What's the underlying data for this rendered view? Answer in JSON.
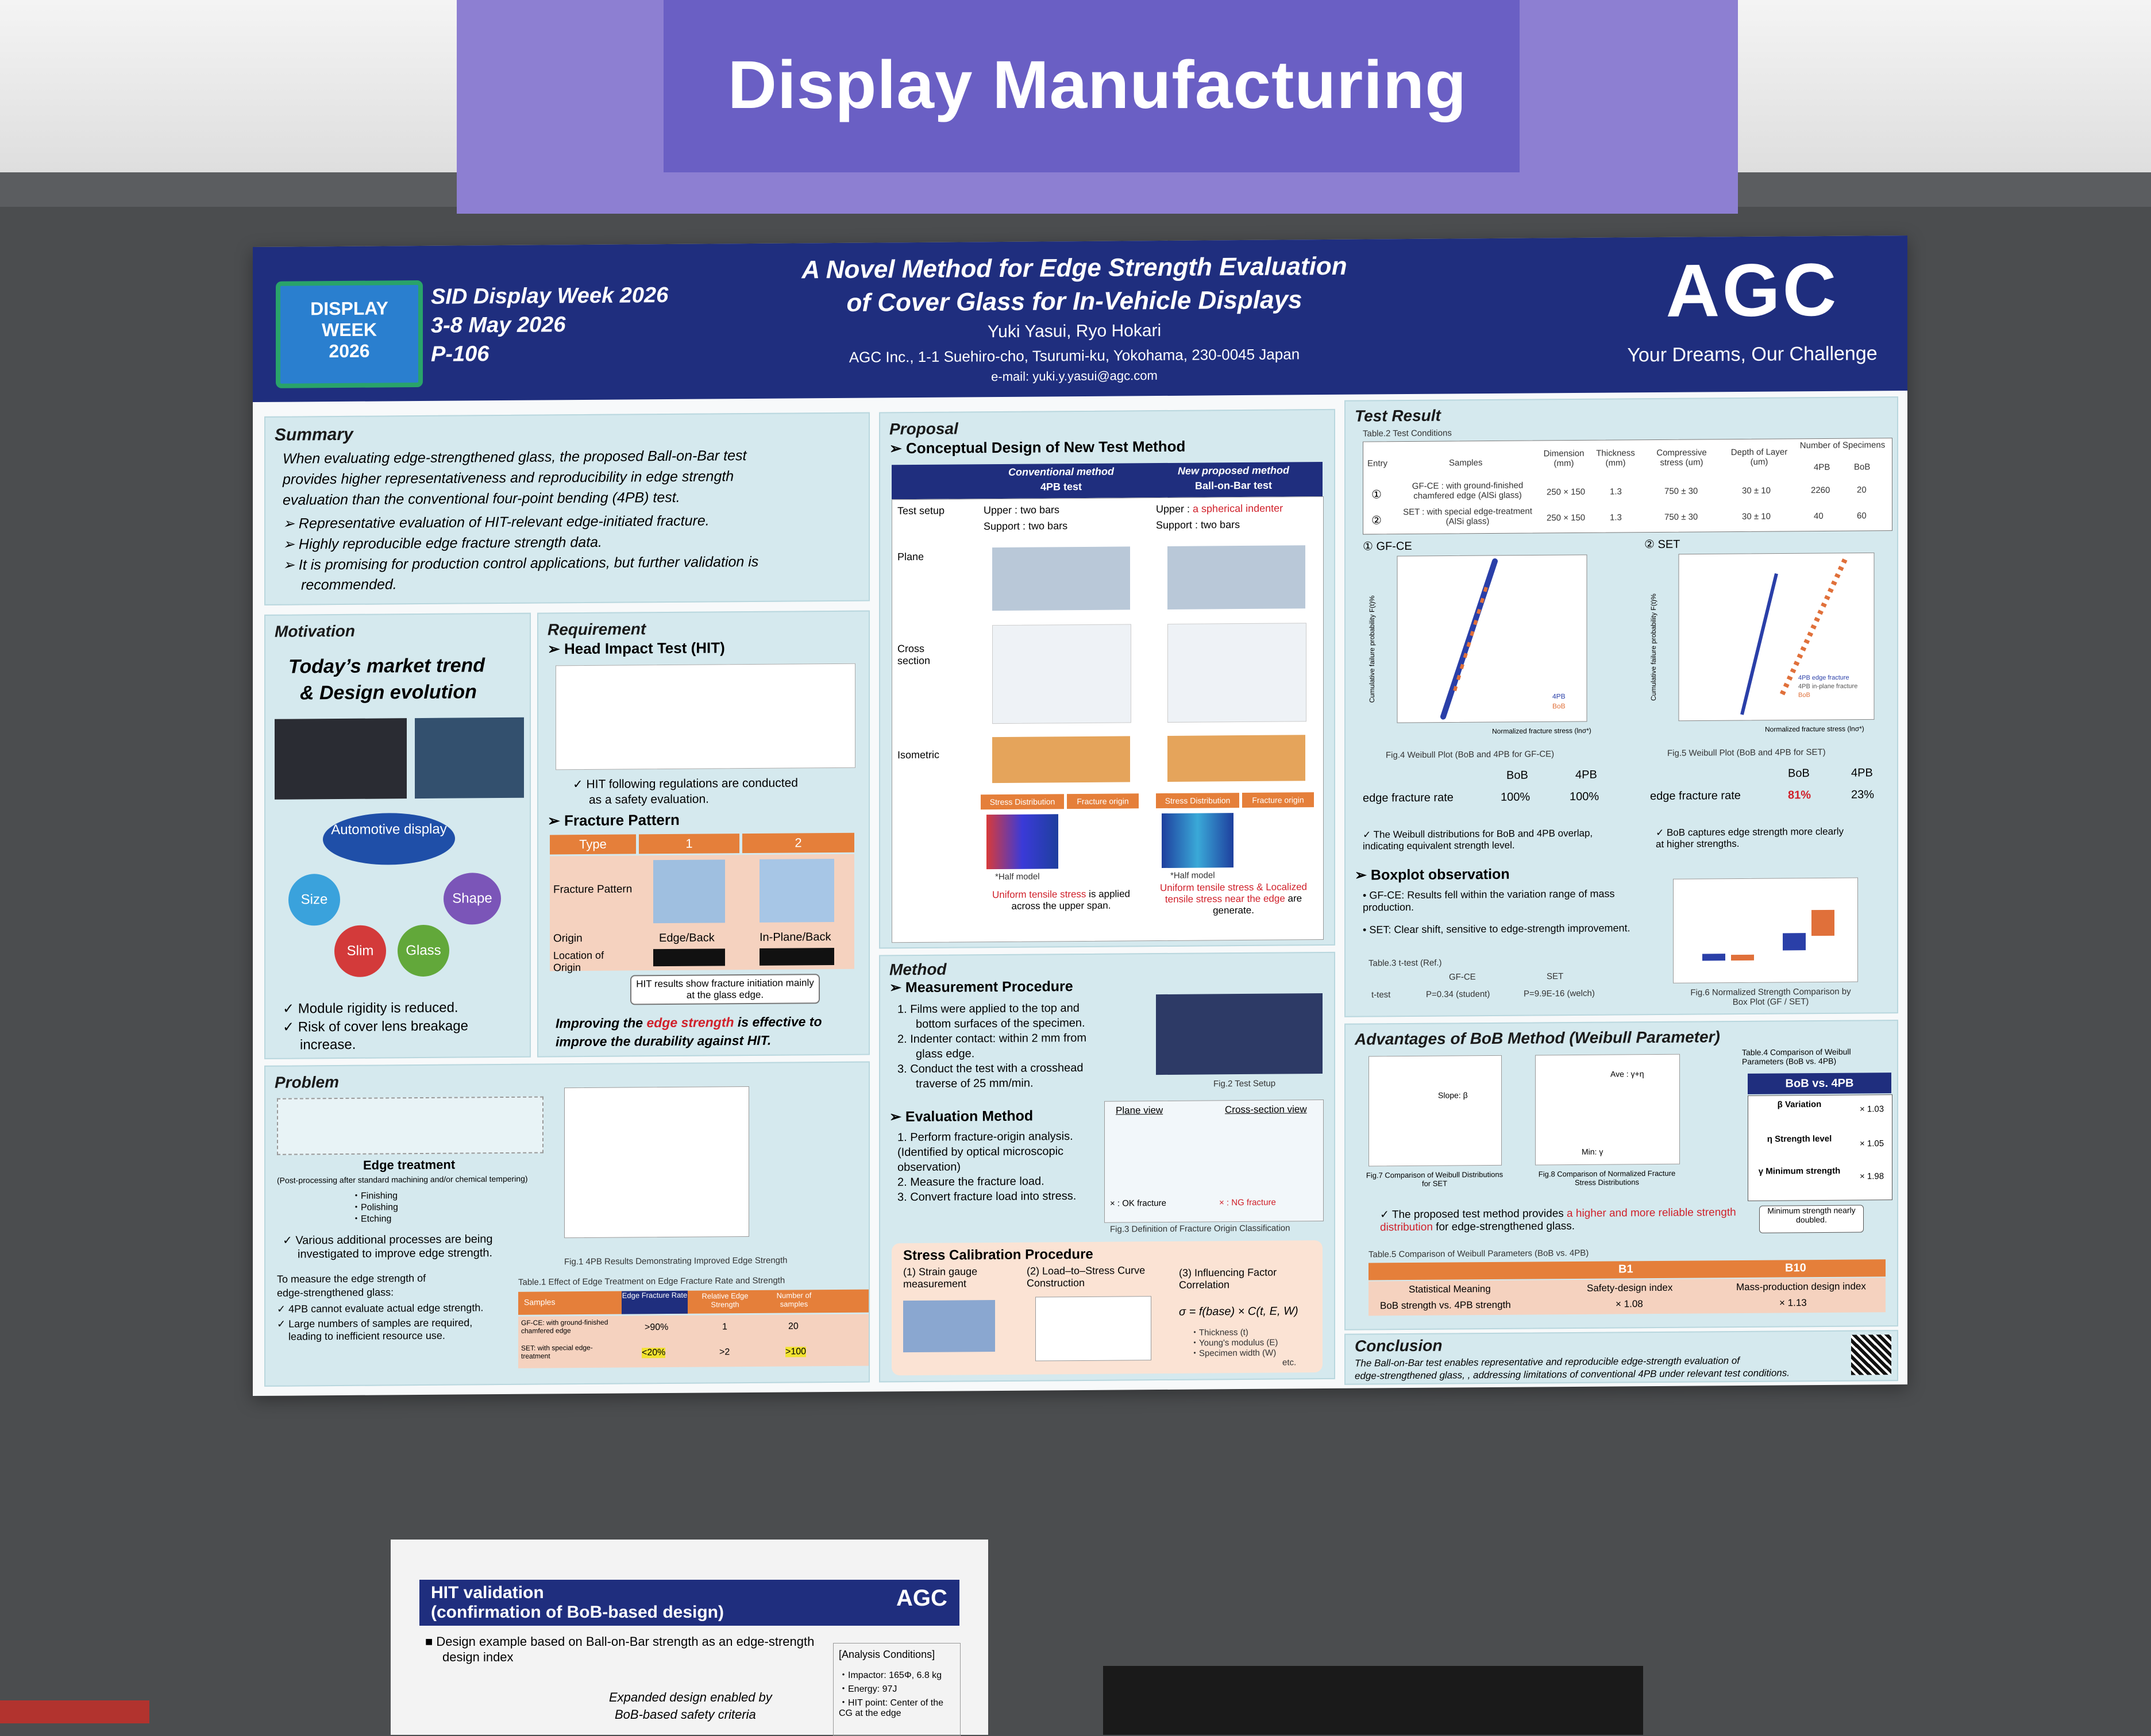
{
  "banner": {
    "title": "Display Manufacturing"
  },
  "poster": {
    "badge": {
      "line1": "DISPLAY",
      "line2": "WEEK",
      "line3": "2026"
    },
    "conference": {
      "name": "SID Display Week 2026",
      "dates": "3-8 May 2026",
      "code": "P-106"
    },
    "title_line1": "A Novel Method for Edge Strength Evaluation",
    "title_line2": "of Cover Glass for In-Vehicle Displays",
    "authors": "Yuki Yasui, Ryo Hokari",
    "affiliation": "AGC Inc., 1-1 Suehiro-cho, Tsurumi-ku, Yokohama, 230-0045 Japan",
    "email": "e-mail: yuki.y.yasui@agc.com",
    "logo": {
      "text": "AGC",
      "tagline": "Your Dreams, Our Challenge"
    },
    "summary": {
      "title": "Summary",
      "line1": "When evaluating edge-strengthened glass, the proposed Ball-on-Bar test",
      "line2": "provides higher representativeness and reproducibility in edge strength",
      "line3": "evaluation than the conventional four-point bending (4PB) test.",
      "b1": "Representative evaluation of HIT-relevant edge-initiated fracture.",
      "b2": "Highly reproducible edge fracture strength data.",
      "b3": "It is promising for production control applications, but further validation is",
      "b3b": "recommended."
    },
    "motivation": {
      "title": "Motivation",
      "heading1": "Today’s market trend",
      "heading2": "& Design evolution",
      "center": "Automotive display",
      "size": "Size",
      "shape": "Shape",
      "slim": "Slim",
      "glass": "Glass",
      "c1": "Module rigidity is reduced.",
      "c2": "Risk of cover lens breakage",
      "c2b": "increase."
    },
    "requirement": {
      "title": "Requirement",
      "hit": "Head Impact Test (HIT)",
      "check": "HIT following regulations are conducted",
      "check_b": "as a safety evaluation.",
      "fracture": "Fracture Pattern",
      "col_type": "Type",
      "col_1": "1",
      "col_2": "2",
      "row_pattern": "Fracture Pattern",
      "row_origin": "Origin",
      "row_location": "Location of Origin",
      "origin_1": "Edge/Back",
      "origin_2": "In-Plane/Back",
      "callout": "HIT results show fracture initiation mainly at the glass edge.",
      "improve1": "Improving the ",
      "improve_red": "edge strength",
      "improve2": " is effective to",
      "improve3": "improve the durability against HIT."
    },
    "problem": {
      "title": "Problem",
      "edge_treat": "Edge treatment",
      "post": "(Post-processing after standard machining and/or chemical tempering)",
      "f1": "・Finishing",
      "f2": "・Polishing",
      "f3": "・Etching",
      "various": "Various additional processes are being",
      "various_b": "investigated to improve edge strength.",
      "measure1": "To measure the edge strength of",
      "measure2": "edge-strengthened glass:",
      "m1": "4PB cannot evaluate actual edge strength.",
      "m2": "Large numbers of samples are required,",
      "m2b": "leading to inefficient resource use.",
      "fig1": "Fig.1 4PB Results Demonstrating Improved Edge Strength",
      "table1_title": "Table.1 Effect of Edge Treatment on Edge Fracture Rate and Strength",
      "t_samples": "Samples",
      "t_rate": "Edge Fracture Rate",
      "t_rel": "Relative Edge Strength",
      "t_num": "Number of samples",
      "r1_name": "GF-CE: with ground-finished chamfered edge",
      "r1_rate": ">90%",
      "r1_rel": "1",
      "r1_num": "20",
      "r2_name": "SET: with special edge-treatment",
      "r2_rate": "<20%",
      "r2_rel": ">2",
      "r2_num": ">100"
    },
    "proposal": {
      "title": "Proposal",
      "concept": "Conceptual Design of New Test Method",
      "conv1": "Conventional method",
      "conv2": "4PB test",
      "new1": "New proposed method",
      "new2": "Ball-on-Bar test",
      "setup": "Test setup",
      "conv_up": "Upper : two bars",
      "conv_sup": "Support : two bars",
      "new_up_a": "Upper : ",
      "new_up_red": "a spherical indenter",
      "new_sup": "Support : two bars",
      "plane": "Plane",
      "cross": "Cross section",
      "iso": "Isometric",
      "stress": "Stress Distribution",
      "forigin": "Fracture origin",
      "half": "*Half model",
      "conv_note_red": "Uniform tensile stress",
      "conv_note": " is applied across the upper span.",
      "new_note_red": "Uniform tensile stress & Localized tensile stress near the edge",
      "new_note": " are generate."
    },
    "method": {
      "title": "Method",
      "measure": "Measurement Procedure",
      "s1": "1.  Films were applied to the top and",
      "s1b": "bottom surfaces of the specimen.",
      "s2": "2.  Indenter contact: within 2 mm from",
      "s2b": "glass edge.",
      "s3": "3.  Conduct the test with a crosshead",
      "s3b": "traverse of 25 mm/min.",
      "fig2": "Fig.2 Test Setup",
      "eval": "Evaluation Method",
      "e1": "1.  Perform fracture-origin analysis.",
      "e1b": "(Identified by optical microscopic",
      "e1c": "observation)",
      "e2": "2.  Measure the fracture load.",
      "e3": "3.  Convert fracture load into stress.",
      "plane_view": "Plane view",
      "cross_view": "Cross-section view",
      "ok": "× : OK fracture",
      "ng": "× : NG fracture",
      "fig3": "Fig.3 Definition of Fracture Origin Classification",
      "calib": "Stress Calibration Procedure",
      "c1": "(1) Strain gauge measurement",
      "c2": "(2) Load–to–Stress Curve Construction",
      "c3": "(3) Influencing Factor Correlation",
      "formula": "σ = f(base) × C(t, E, W)",
      "k1": "・Thickness (t)",
      "k2": "・Young's modulus (E)",
      "k3": "・Specimen width (W)",
      "k4": "etc."
    },
    "test_result": {
      "title": "Test Result",
      "table2_title": "Table.2 Test Conditions",
      "h_entry": "Entry",
      "h_samples": "Samples",
      "h_dim": "Dimension (mm)",
      "h_thick": "Thickness (mm)",
      "h_cs": "Compressive stress (um)",
      "h_dol": "Depth of Layer (um)",
      "h_num": "Number of Specimens",
      "h_4pb": "4PB",
      "h_bob": "BoB",
      "r1": {
        "entry": "①",
        "samples": "GF-CE : with ground-finished chamfered edge (AlSi glass)",
        "dim": "250 × 150",
        "thick": "1.3",
        "cs": "750 ± 30",
        "dol": "30 ± 10",
        "n4pb": "2260",
        "nbob": "20"
      },
      "r2": {
        "entry": "②",
        "samples": "SET : with special edge-treatment (AlSi glass)",
        "dim": "250 × 150",
        "thick": "1.3",
        "cs": "750 ± 30",
        "dol": "30 ± 10",
        "n4pb": "40",
        "nbob": "60"
      },
      "gf_label": "① GF-CE",
      "set_label": "② SET",
      "fig4": "Fig.4 Weibull Plot (BoB and 4PB for GF-CE)",
      "fig5": "Fig.5 Weibull Plot (BoB and 4PB for SET)",
      "col_bob": "BoB",
      "col_4pb": "4PB",
      "efr": "edge fracture rate",
      "gf_bob": "100%",
      "gf_4pb": "100%",
      "set_bob": "81%",
      "set_4pb": "23%",
      "gf_note": "The Weibull distributions for BoB and 4PB overlap, indicating equivalent strength level.",
      "set_note": "BoB captures edge strength more clearly at higher strengths.",
      "boxplot": "Boxplot observation",
      "bp1": "GF-CE: Results fell within the variation range of mass production.",
      "bp2": "SET: Clear shift, sensitive to edge-strength improvement.",
      "table3": "Table.3 t-test (Ref.)",
      "t3_gf": "GF-CE",
      "t3_set": "SET",
      "t3_row": "t-test",
      "t3_gfv": "P=0.34 (student)",
      "t3_setv": "P=9.9E-16 (welch)",
      "fig6": "Fig.6 Normalized Strength Comparison by Box Plot (GF / SET)"
    },
    "advantages": {
      "title": "Advantages of BoB Method (Weibull Parameter)",
      "fig7": "Fig.7 Comparison of Weibull Distributions for SET",
      "fig8": "Fig.8 Comparison of Normalized Fracture Stress Distributions",
      "slope": "Slope: β",
      "ave": "Ave : γ+η",
      "min": "Min: γ",
      "table4": "Table.4 Comparison of Weibull Parameters (BoB vs. 4PB)",
      "t4_head": "BoB vs. 4PB",
      "v1_label": "β Variation",
      "v1": "× 1.03",
      "v2_label": "η Strength level",
      "v2": "× 1.05",
      "v3_label": "γ Minimum strength",
      "v3": "× 1.98",
      "min_note": "Minimum strength nearly doubled.",
      "prop_a": "The proposed test method provides ",
      "prop_red": "a higher and more reliable strength distribution",
      "prop_b": " for edge-strengthened glass.",
      "table5": "Table.5 Comparison of Weibull Parameters (BoB vs. 4PB)",
      "t5_b1": "B1",
      "t5_b10": "B10",
      "t5_meaning": "Statistical Meaning",
      "t5_b1m": "Safety-design index",
      "t5_b10m": "Mass-production design index",
      "t5_row": "BoB strength vs. 4PB strength",
      "t5_b1v": "× 1.08",
      "t5_b10v": "× 1.13"
    },
    "conclusion": {
      "title": "Conclusion",
      "line1": "The Ball-on-Bar test enables representative and reproducible edge-strength evaluation of",
      "line2": "edge-strengthened glass, , addressing limitations of conventional 4PB under relevant test conditions."
    }
  },
  "sign": {
    "title1": "HIT validation",
    "title2": "(confirmation of BoB-based design)",
    "logo": "AGC",
    "bullet": "Design example based on Ball-on-Bar strength as an edge-strength",
    "bullet_b": "design index",
    "analysis": "[Analysis Conditions]",
    "a1": "・Impactor: 165Φ, 6.8 kg",
    "a2": "・Energy: 97J",
    "a3": "・HIT point: Center of the",
    "a3b": "CG at the edge",
    "expanded1": "Expanded design enabled by",
    "expanded2": "BoB-based safety criteria"
  },
  "chart_data": [
    {
      "type": "scatter",
      "title": "Fig.4 Weibull Plot (BoB and 4PB for GF-CE)",
      "xlabel": "Normalized fracture stress (lnσ*)",
      "ylabel": "Cumulative failure probability F(t)%",
      "series": [
        {
          "name": "4PB"
        },
        {
          "name": "BoB"
        }
      ]
    },
    {
      "type": "scatter",
      "title": "Fig.5 Weibull Plot (BoB and 4PB for SET)",
      "xlabel": "Normalized fracture stress (lnσ*)",
      "ylabel": "Cumulative failure probability F(t)%",
      "series": [
        {
          "name": "4PB edge fracture"
        },
        {
          "name": "4PB in-plane fracture"
        },
        {
          "name": "BoB"
        }
      ]
    }
  ]
}
